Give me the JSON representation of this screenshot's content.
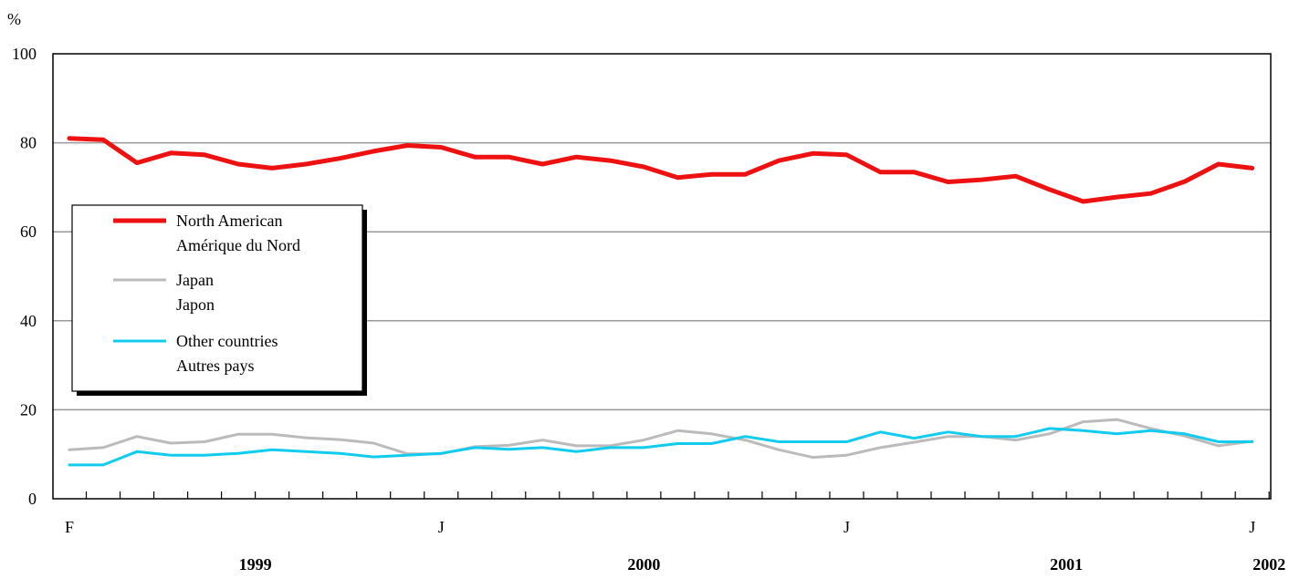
{
  "chart_data": {
    "type": "line",
    "title": "",
    "y_unit_label": "%",
    "ylim": [
      0,
      100
    ],
    "y_ticks": [
      0,
      20,
      40,
      60,
      80,
      100
    ],
    "grid": true,
    "x_tick_labels": [
      {
        "index": 0,
        "label": "F"
      },
      {
        "index": 11,
        "label": "J"
      },
      {
        "index": 23,
        "label": "J"
      },
      {
        "index": 35,
        "label": "J"
      }
    ],
    "year_labels": [
      {
        "index": 5.5,
        "label": "1999"
      },
      {
        "index": 17,
        "label": "2000"
      },
      {
        "index": 29.5,
        "label": "2001"
      },
      {
        "index": 35.5,
        "label": "2002"
      }
    ],
    "x": [
      "1999-02",
      "1999-03",
      "1999-04",
      "1999-05",
      "1999-06",
      "1999-07",
      "1999-08",
      "1999-09",
      "1999-10",
      "1999-11",
      "1999-12",
      "2000-01",
      "2000-02",
      "2000-03",
      "2000-04",
      "2000-05",
      "2000-06",
      "2000-07",
      "2000-08",
      "2000-09",
      "2000-10",
      "2000-11",
      "2000-12",
      "2001-01",
      "2001-02",
      "2001-03",
      "2001-04",
      "2001-05",
      "2001-06",
      "2001-07",
      "2001-08",
      "2001-09",
      "2001-10",
      "2001-11",
      "2001-12",
      "2002-01"
    ],
    "series": [
      {
        "name": "North American",
        "name_fr": "Amérique du Nord",
        "color": "#ee1111",
        "values": [
          81,
          80.7,
          75.5,
          77.7,
          77.3,
          75.2,
          74.3,
          75.2,
          76.5,
          78.1,
          79.4,
          79,
          76.8,
          76.8,
          75.2,
          76.8,
          76,
          74.6,
          72.2,
          72.9,
          72.9,
          76,
          77.6,
          77.3,
          73.4,
          73.4,
          71.2,
          71.7,
          72.5,
          69.5,
          66.8,
          67.8,
          68.6,
          71.3,
          75.2,
          74.3
        ]
      },
      {
        "name": "Japan",
        "name_fr": "Japon",
        "color": "#bbbbbb",
        "values": [
          11,
          11.5,
          14,
          12.5,
          12.8,
          14.5,
          14.5,
          13.7,
          13.3,
          12.5,
          10.1,
          10.1,
          11.7,
          12,
          13.2,
          11.9,
          11.9,
          13.2,
          15.3,
          14.6,
          13.2,
          11,
          9.3,
          9.8,
          11.5,
          12.7,
          14,
          14,
          13.2,
          14.6,
          17.3,
          17.8,
          15.8,
          14.1,
          11.9,
          12.9
        ]
      },
      {
        "name": "Other countries",
        "name_fr": "Autres pays",
        "color": "#11ccee",
        "values": [
          7.6,
          7.6,
          10.6,
          9.8,
          9.8,
          10.2,
          11,
          10.6,
          10.2,
          9.4,
          9.8,
          10.2,
          11.5,
          11.1,
          11.5,
          10.6,
          11.5,
          11.5,
          12.4,
          12.4,
          14,
          12.8,
          12.8,
          12.8,
          15,
          13.6,
          15,
          14,
          14,
          15.8,
          15.3,
          14.6,
          15.3,
          14.6,
          12.8,
          12.8
        ]
      }
    ],
    "legend_position": "left-middle"
  }
}
